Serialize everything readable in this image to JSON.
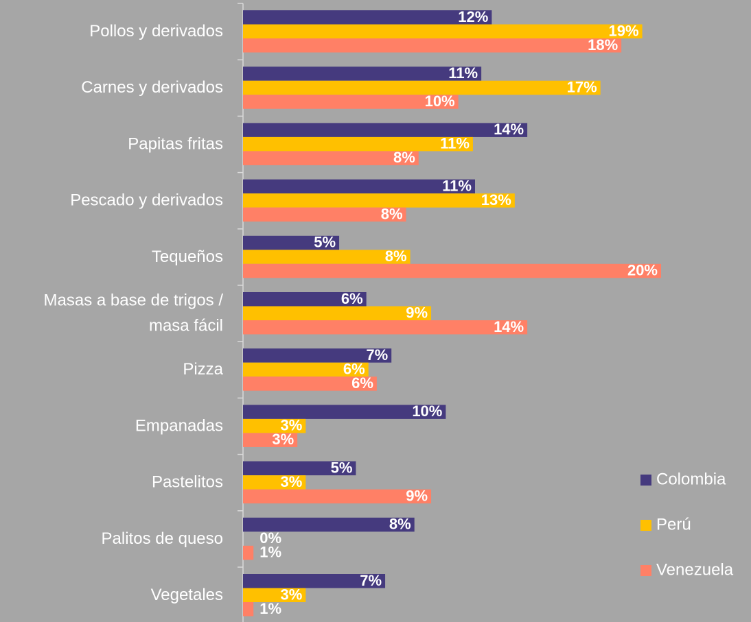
{
  "chart_data": {
    "type": "bar",
    "orientation": "horizontal",
    "categories": [
      "Pollos y derivados",
      "Carnes y derivados",
      "Papitas fritas",
      "Pescado y derivados",
      "Tequeños",
      "Masas a base de trigos /\nmasa fácil",
      "Pizza",
      "Empanadas",
      "Pastelitos",
      "Palitos de queso",
      "Vegetales"
    ],
    "xlim": [
      0,
      20
    ],
    "series": [
      {
        "name": "Colombia",
        "color": "#453a7e",
        "values": [
          11.9,
          11.4,
          13.6,
          11.1,
          4.6,
          5.9,
          7.1,
          9.7,
          5.4,
          8.2,
          6.8
        ],
        "value_labels": [
          "12%",
          "11%",
          "14%",
          "11%",
          "5%",
          "6%",
          "7%",
          "10%",
          "5%",
          "8%",
          "7%"
        ]
      },
      {
        "name": "Perú",
        "color": "#ffc000",
        "values": [
          19.1,
          17.1,
          11.0,
          13.0,
          8.0,
          9.0,
          6.0,
          3.0,
          3.0,
          0,
          3.0
        ],
        "value_labels": [
          "19%",
          "17%",
          "11%",
          "13%",
          "8%",
          "9%",
          "6%",
          "3%",
          "3%",
          "0%",
          "3%"
        ]
      },
      {
        "name": "Venezuela",
        "color": "#ff8066",
        "values": [
          18.1,
          10.3,
          8.4,
          7.8,
          20.0,
          13.6,
          6.4,
          2.6,
          9.0,
          0.5,
          0.5
        ],
        "value_labels": [
          "18%",
          "10%",
          "8%",
          "8%",
          "20%",
          "14%",
          "6%",
          "3%",
          "9%",
          "1%",
          "1%"
        ]
      }
    ],
    "legend": "right"
  }
}
